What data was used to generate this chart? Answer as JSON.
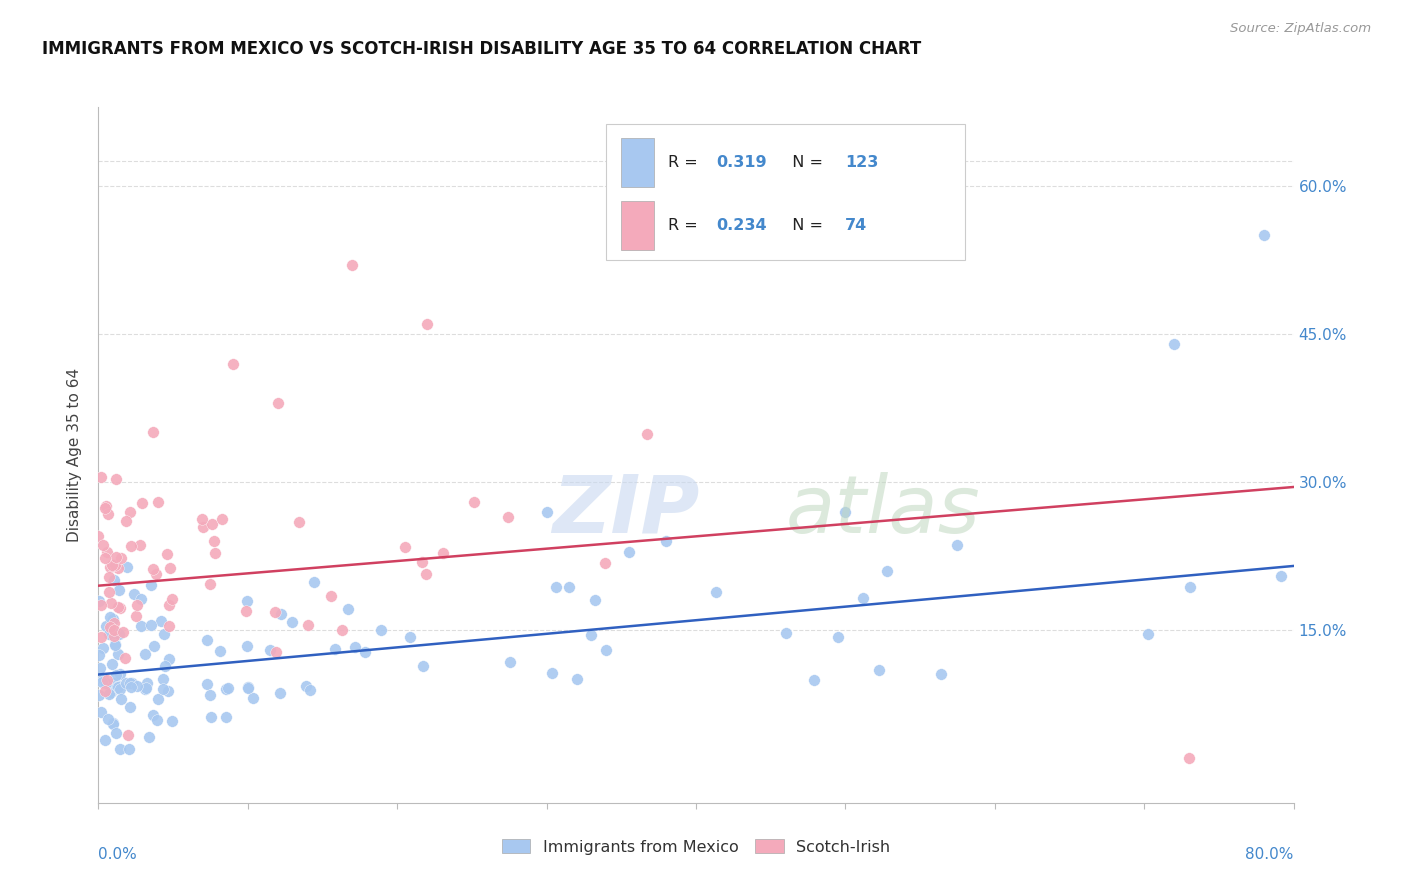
{
  "title": "IMMIGRANTS FROM MEXICO VS SCOTCH-IRISH DISABILITY AGE 35 TO 64 CORRELATION CHART",
  "source": "Source: ZipAtlas.com",
  "ylabel": "Disability Age 35 to 64",
  "ytick_vals": [
    0.15,
    0.3,
    0.45,
    0.6
  ],
  "ytick_labels": [
    "15.0%",
    "30.0%",
    "45.0%",
    "60.0%"
  ],
  "xlim": [
    0.0,
    0.8
  ],
  "ylim": [
    -0.025,
    0.68
  ],
  "blue_color": "#A8C8F0",
  "pink_color": "#F4AABB",
  "blue_line_color": "#3060C0",
  "pink_line_color": "#D04060",
  "tick_color": "#4488CC",
  "grid_color": "#DDDDDD",
  "blue_r": 0.319,
  "blue_n": 123,
  "pink_r": 0.234,
  "pink_n": 74,
  "blue_line_start_y": 0.105,
  "blue_line_end_y": 0.215,
  "pink_line_start_y": 0.195,
  "pink_line_end_y": 0.295
}
